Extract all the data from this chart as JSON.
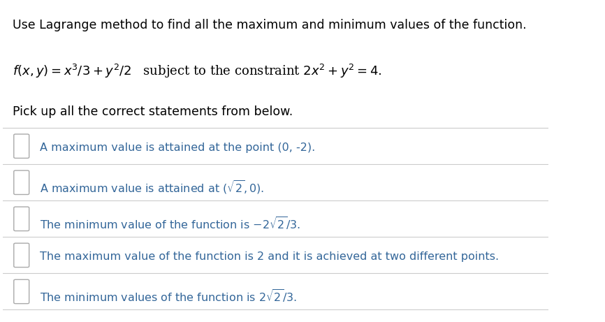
{
  "bg_color": "#ffffff",
  "text_color": "#000000",
  "option_text_color": "#336699",
  "line_color": "#cccccc",
  "title_line1": "Use Lagrange method to find all the maximum and minimum values of the function.",
  "subtitle": "Pick up all the correct statements from below.",
  "options": [
    "A maximum value is attained at the point (0, -2).",
    "A maximum value is attained at $(\\sqrt{2}, 0)$.",
    "The minimum value of the function is $-2\\sqrt{2}/3$.",
    "The maximum value of the function is 2 and it is achieved at two different points.",
    "The minimum values of the function is $2\\sqrt{2}/3$."
  ],
  "figsize": [
    8.66,
    4.61
  ],
  "dpi": 100
}
